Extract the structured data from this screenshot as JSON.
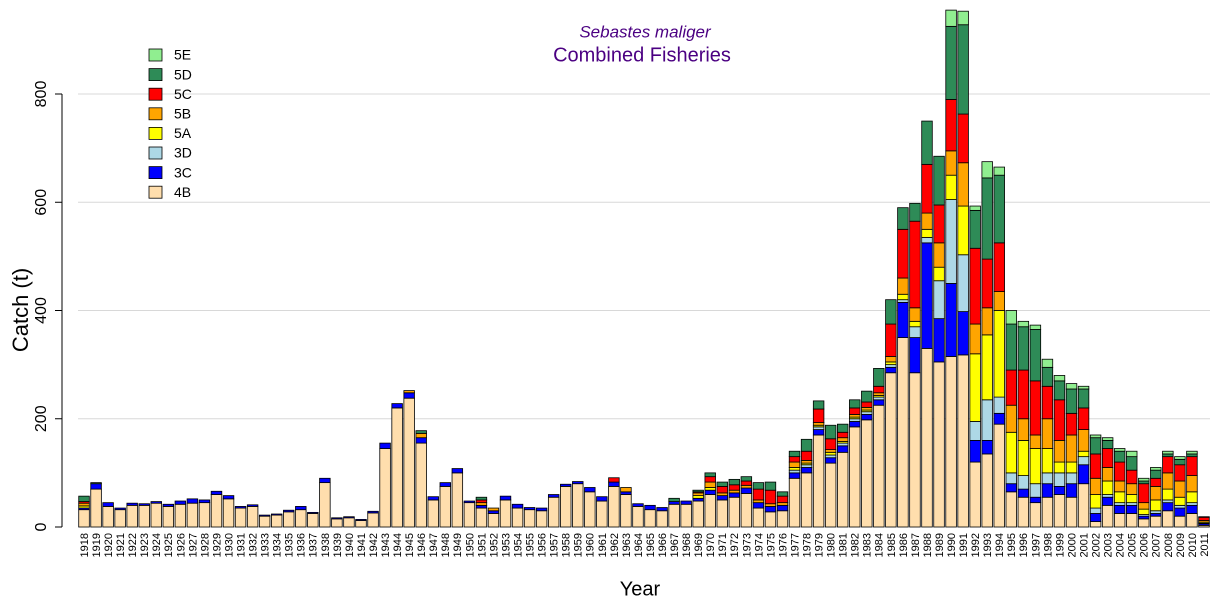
{
  "chart_data": {
    "type": "stacked_bar",
    "title": "Sebastes maliger",
    "subtitle": "Combined Fisheries",
    "x_label": "Year",
    "y_label": "Catch (t)",
    "categories": [
      "1918",
      "1919",
      "1920",
      "1921",
      "1922",
      "1923",
      "1924",
      "1925",
      "1926",
      "1927",
      "1928",
      "1929",
      "1930",
      "1931",
      "1932",
      "1933",
      "1934",
      "1935",
      "1936",
      "1937",
      "1938",
      "1939",
      "1940",
      "1941",
      "1942",
      "1943",
      "1944",
      "1945",
      "1946",
      "1947",
      "1948",
      "1949",
      "1950",
      "1951",
      "1952",
      "1953",
      "1954",
      "1955",
      "1956",
      "1957",
      "1958",
      "1959",
      "1960",
      "1961",
      "1962",
      "1963",
      "1964",
      "1965",
      "1966",
      "1967",
      "1968",
      "1969",
      "1970",
      "1971",
      "1972",
      "1973",
      "1974",
      "1975",
      "1976",
      "1977",
      "1978",
      "1979",
      "1980",
      "1981",
      "1982",
      "1983",
      "1984",
      "1985",
      "1986",
      "1987",
      "1988",
      "1989",
      "1990",
      "1991",
      "1992",
      "1993",
      "1994",
      "1995",
      "1996",
      "1997",
      "1998",
      "1999",
      "2000",
      "2001",
      "2002",
      "2003",
      "2004",
      "2005",
      "2006",
      "2007",
      "2008",
      "2009",
      "2010",
      "2011"
    ],
    "series": [
      {
        "name": "4B",
        "color": "#FFDEAD",
        "values": [
          32,
          70,
          38,
          32,
          40,
          40,
          44,
          38,
          42,
          44,
          45,
          60,
          52,
          35,
          38,
          20,
          22,
          28,
          32,
          25,
          82,
          15,
          17,
          12,
          26,
          145,
          220,
          238,
          155,
          50,
          75,
          100,
          45,
          35,
          25,
          50,
          35,
          32,
          30,
          55,
          75,
          80,
          65,
          48,
          75,
          60,
          38,
          32,
          30,
          42,
          42,
          48,
          60,
          50,
          55,
          62,
          35,
          28,
          30,
          90,
          100,
          170,
          118,
          138,
          185,
          198,
          225,
          285,
          350,
          285,
          330,
          305,
          315,
          318,
          120,
          135,
          190,
          65,
          55,
          45,
          55,
          60,
          55,
          80,
          10,
          40,
          25,
          25,
          15,
          20,
          30,
          20,
          25,
          3
        ]
      },
      {
        "name": "3C",
        "color": "#0000FF",
        "values": [
          3,
          10,
          7,
          3,
          4,
          3,
          3,
          4,
          6,
          8,
          5,
          6,
          6,
          3,
          3,
          2,
          2,
          3,
          6,
          2,
          8,
          2,
          2,
          2,
          3,
          10,
          8,
          10,
          10,
          6,
          7,
          8,
          3,
          5,
          5,
          7,
          7,
          4,
          5,
          5,
          4,
          4,
          8,
          8,
          8,
          5,
          5,
          8,
          6,
          5,
          6,
          5,
          8,
          8,
          8,
          10,
          10,
          10,
          10,
          10,
          10,
          10,
          10,
          12,
          10,
          10,
          10,
          10,
          65,
          65,
          195,
          80,
          135,
          80,
          40,
          25,
          20,
          15,
          15,
          10,
          25,
          15,
          25,
          35,
          15,
          15,
          15,
          15,
          5,
          5,
          15,
          15,
          15,
          3
        ]
      },
      {
        "name": "3D",
        "color": "#ADD8E6",
        "values": [
          0,
          0,
          0,
          0,
          0,
          0,
          0,
          0,
          0,
          0,
          0,
          0,
          0,
          0,
          0,
          0,
          0,
          0,
          0,
          0,
          0,
          0,
          0,
          0,
          0,
          0,
          0,
          0,
          0,
          0,
          0,
          0,
          0,
          0,
          0,
          0,
          0,
          0,
          0,
          0,
          0,
          0,
          0,
          0,
          0,
          0,
          0,
          0,
          0,
          0,
          0,
          0,
          0,
          0,
          0,
          0,
          0,
          0,
          0,
          5,
          5,
          5,
          5,
          5,
          5,
          5,
          5,
          5,
          5,
          20,
          10,
          70,
          155,
          105,
          35,
          75,
          30,
          20,
          25,
          25,
          20,
          25,
          20,
          15,
          10,
          5,
          5,
          5,
          3,
          5,
          5,
          5,
          5,
          1
        ]
      },
      {
        "name": "5A",
        "color": "#FFFF00",
        "values": [
          4,
          0,
          0,
          0,
          0,
          0,
          0,
          0,
          0,
          0,
          0,
          0,
          0,
          0,
          0,
          0,
          0,
          0,
          0,
          0,
          0,
          0,
          0,
          0,
          0,
          0,
          0,
          0,
          0,
          0,
          0,
          0,
          0,
          0,
          0,
          0,
          0,
          0,
          0,
          0,
          0,
          0,
          0,
          0,
          0,
          0,
          0,
          0,
          0,
          0,
          0,
          5,
          5,
          0,
          0,
          0,
          0,
          0,
          0,
          5,
          3,
          3,
          5,
          3,
          3,
          3,
          3,
          5,
          10,
          10,
          15,
          25,
          45,
          90,
          125,
          120,
          160,
          75,
          65,
          65,
          45,
          20,
          20,
          10,
          25,
          25,
          20,
          15,
          10,
          20,
          20,
          15,
          20,
          2
        ]
      },
      {
        "name": "5B",
        "color": "#FFA500",
        "values": [
          5,
          0,
          0,
          0,
          0,
          0,
          0,
          0,
          0,
          0,
          0,
          0,
          0,
          0,
          0,
          0,
          0,
          0,
          0,
          0,
          0,
          0,
          0,
          0,
          0,
          0,
          0,
          4,
          8,
          0,
          0,
          0,
          0,
          5,
          5,
          0,
          0,
          0,
          0,
          0,
          0,
          0,
          0,
          0,
          0,
          8,
          0,
          0,
          0,
          0,
          0,
          5,
          10,
          5,
          5,
          5,
          5,
          5,
          5,
          10,
          5,
          5,
          5,
          7,
          5,
          5,
          5,
          10,
          30,
          25,
          30,
          45,
          45,
          80,
          55,
          50,
          35,
          50,
          40,
          25,
          55,
          40,
          50,
          40,
          30,
          25,
          20,
          20,
          12,
          25,
          30,
          30,
          30,
          3
        ]
      },
      {
        "name": "5C",
        "color": "#FF0000",
        "values": [
          3,
          0,
          0,
          0,
          0,
          0,
          0,
          0,
          0,
          0,
          0,
          0,
          0,
          0,
          0,
          0,
          0,
          0,
          0,
          0,
          0,
          0,
          0,
          0,
          0,
          0,
          0,
          0,
          0,
          0,
          0,
          0,
          0,
          5,
          0,
          0,
          0,
          0,
          0,
          0,
          0,
          0,
          0,
          0,
          8,
          0,
          0,
          0,
          0,
          0,
          0,
          2,
          10,
          12,
          10,
          8,
          20,
          25,
          12,
          10,
          17,
          25,
          20,
          10,
          12,
          10,
          12,
          60,
          90,
          160,
          90,
          70,
          95,
          90,
          140,
          90,
          90,
          65,
          90,
          100,
          60,
          75,
          40,
          40,
          45,
          35,
          35,
          25,
          35,
          15,
          30,
          30,
          35,
          6
        ]
      },
      {
        "name": "5D",
        "color": "#2E8B57",
        "values": [
          10,
          2,
          0,
          0,
          0,
          0,
          0,
          0,
          0,
          0,
          0,
          0,
          0,
          0,
          0,
          0,
          0,
          0,
          0,
          0,
          0,
          0,
          0,
          0,
          0,
          0,
          0,
          0,
          5,
          0,
          0,
          0,
          0,
          5,
          0,
          0,
          0,
          0,
          0,
          0,
          0,
          0,
          0,
          0,
          0,
          0,
          0,
          0,
          0,
          6,
          0,
          3,
          7,
          8,
          10,
          8,
          12,
          15,
          8,
          10,
          22,
          15,
          25,
          15,
          15,
          20,
          33,
          45,
          40,
          33,
          80,
          90,
          135,
          165,
          70,
          150,
          125,
          85,
          80,
          95,
          35,
          35,
          45,
          35,
          30,
          15,
          20,
          25,
          5,
          15,
          5,
          10,
          5,
          1
        ]
      },
      {
        "name": "5E",
        "color": "#90EE90",
        "values": [
          0,
          0,
          0,
          0,
          0,
          0,
          0,
          0,
          0,
          0,
          0,
          0,
          0,
          0,
          0,
          0,
          0,
          0,
          0,
          0,
          0,
          0,
          0,
          0,
          0,
          0,
          0,
          0,
          0,
          0,
          0,
          0,
          0,
          0,
          0,
          0,
          0,
          0,
          0,
          0,
          0,
          0,
          0,
          0,
          0,
          0,
          0,
          0,
          0,
          0,
          0,
          0,
          0,
          0,
          0,
          0,
          0,
          0,
          0,
          0,
          0,
          0,
          0,
          0,
          0,
          0,
          0,
          0,
          0,
          0,
          0,
          0,
          30,
          25,
          8,
          30,
          15,
          25,
          10,
          8,
          15,
          10,
          10,
          5,
          5,
          5,
          5,
          10,
          5,
          5,
          5,
          5,
          5,
          0
        ]
      }
    ],
    "ylim": [
      0,
      970
    ],
    "yticks": [
      0,
      200,
      400,
      600,
      800
    ],
    "grid": true,
    "legend": "top-left"
  }
}
